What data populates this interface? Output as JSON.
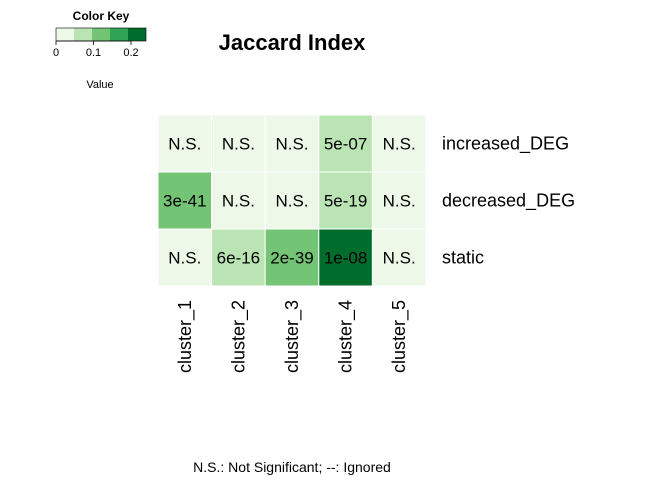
{
  "chart_data": {
    "type": "heatmap",
    "title": "Jaccard Index",
    "columns": [
      "cluster_1",
      "cluster_2",
      "cluster_3",
      "cluster_4",
      "cluster_5"
    ],
    "rows": [
      "increased_DEG",
      "decreased_DEG",
      "static"
    ],
    "values": [
      [
        0.0,
        0.0,
        0.0,
        0.07,
        0.0
      ],
      [
        0.13,
        0.0,
        0.0,
        0.07,
        0.0
      ],
      [
        0.0,
        0.07,
        0.12,
        0.23,
        0.0
      ]
    ],
    "cell_labels": [
      [
        "N.S.",
        "N.S.",
        "N.S.",
        "5e-07",
        "N.S."
      ],
      [
        "3e-41",
        "N.S.",
        "N.S.",
        "5e-19",
        "N.S."
      ],
      [
        "N.S.",
        "6e-16",
        "2e-39",
        "1e-08",
        "N.S."
      ]
    ],
    "color_key": {
      "title": "Color Key",
      "xlabel": "Value",
      "ticks": [
        "0",
        "0.1",
        "0.2"
      ],
      "tick_values": [
        0,
        0.1,
        0.2
      ],
      "range": [
        0,
        0.24
      ],
      "bins": 5,
      "colors": [
        "#edf8e9",
        "#bae4b3",
        "#74c476",
        "#31a354",
        "#006d2c"
      ]
    },
    "footnote": "N.S.: Not Significant; --: Ignored"
  }
}
